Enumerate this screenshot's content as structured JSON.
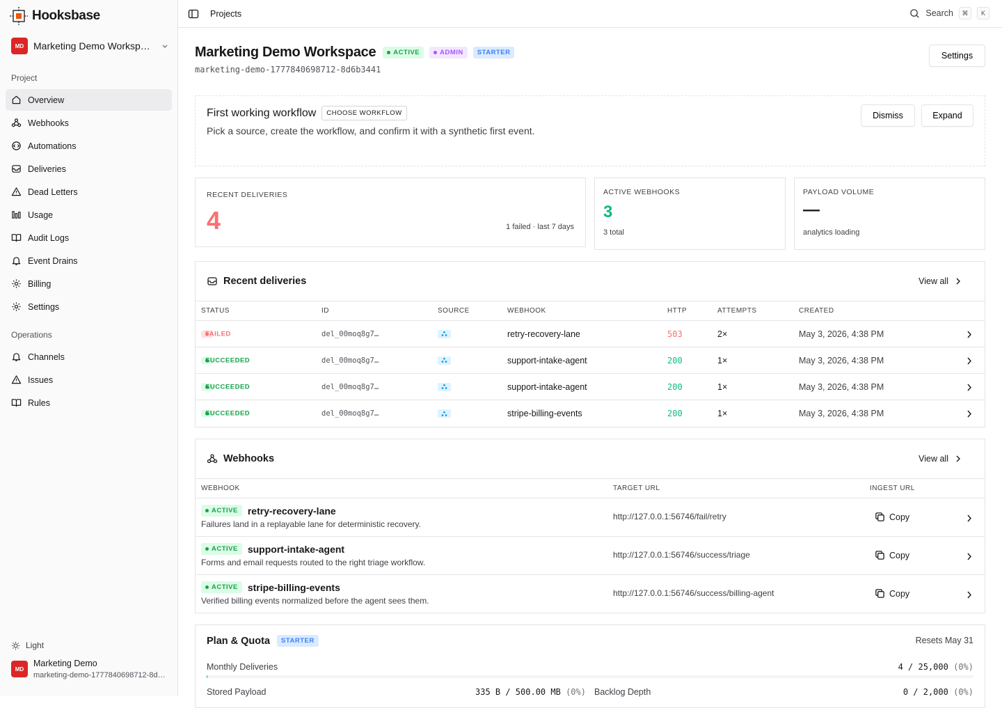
{
  "brand": {
    "name": "Hooksbase"
  },
  "workspace": {
    "initials": "MD",
    "name": "Marketing Demo Workspace",
    "name_short": "Marketing Demo Worksp…"
  },
  "sidebar": {
    "project_label": "Project",
    "project_items": [
      {
        "label": "Overview",
        "icon": "home-icon",
        "active": true
      },
      {
        "label": "Webhooks",
        "icon": "webhook-icon"
      },
      {
        "label": "Automations",
        "icon": "automation-icon"
      },
      {
        "label": "Deliveries",
        "icon": "deliveries-icon"
      },
      {
        "label": "Dead Letters",
        "icon": "warning-icon"
      },
      {
        "label": "Usage",
        "icon": "usage-icon"
      },
      {
        "label": "Audit Logs",
        "icon": "book-icon"
      },
      {
        "label": "Event Drains",
        "icon": "bell-icon"
      },
      {
        "label": "Billing",
        "icon": "gear-icon"
      },
      {
        "label": "Settings",
        "icon": "gear-icon"
      }
    ],
    "operations_label": "Operations",
    "operations_items": [
      {
        "label": "Channels",
        "icon": "bell-icon"
      },
      {
        "label": "Issues",
        "icon": "warning-icon"
      },
      {
        "label": "Rules",
        "icon": "book-icon"
      }
    ],
    "theme_label": "Light",
    "account": {
      "initials": "MD",
      "name": "Marketing Demo",
      "slug": "marketing-demo-1777840698712-8d6…"
    }
  },
  "topbar": {
    "crumb": "Projects",
    "search_label": "Search",
    "kbd1": "⌘",
    "kbd2": "K"
  },
  "header": {
    "title": "Marketing Demo Workspace",
    "badges": {
      "active": "ACTIVE",
      "admin": "ADMIN",
      "starter": "STARTER"
    },
    "slug": "marketing-demo-1777840698712-8d6b3441",
    "settings_label": "Settings"
  },
  "workflow": {
    "title": "First working workflow",
    "tag": "CHOOSE WORKFLOW",
    "description": "Pick a source, create the workflow, and confirm it with a synthetic first event.",
    "dismiss_label": "Dismiss",
    "expand_label": "Expand"
  },
  "stats": {
    "recent": {
      "label": "RECENT DELIVERIES",
      "value": "4",
      "sub": "1 failed · last 7 days"
    },
    "webhooks": {
      "label": "ACTIVE WEBHOOKS",
      "value": "3",
      "sub": "3 total"
    },
    "payload": {
      "label": "PAYLOAD VOLUME",
      "value": "—",
      "sub": "analytics loading"
    }
  },
  "deliveries": {
    "title": "Recent deliveries",
    "view_all": "View all",
    "columns": [
      "STATUS",
      "ID",
      "SOURCE",
      "WEBHOOK",
      "HTTP",
      "ATTEMPTS",
      "CREATED"
    ],
    "rows": [
      {
        "status": "FAILED",
        "id": "del_00moq8g7…",
        "webhook": "retry-recovery-lane",
        "http": "503",
        "attempts": "2×",
        "created": "May 3, 2026, 4:38 PM"
      },
      {
        "status": "SUCCEEDED",
        "id": "del_00moq8g7…",
        "webhook": "support-intake-agent",
        "http": "200",
        "attempts": "1×",
        "created": "May 3, 2026, 4:38 PM"
      },
      {
        "status": "SUCCEEDED",
        "id": "del_00moq8g7…",
        "webhook": "support-intake-agent",
        "http": "200",
        "attempts": "1×",
        "created": "May 3, 2026, 4:38 PM"
      },
      {
        "status": "SUCCEEDED",
        "id": "del_00moq8g7…",
        "webhook": "stripe-billing-events",
        "http": "200",
        "attempts": "1×",
        "created": "May 3, 2026, 4:38 PM"
      }
    ]
  },
  "webhooks": {
    "title": "Webhooks",
    "view_all": "View all",
    "columns": [
      "WEBHOOK",
      "TARGET URL",
      "INGEST URL"
    ],
    "copy_label": "Copy",
    "rows": [
      {
        "status": "ACTIVE",
        "name": "retry-recovery-lane",
        "desc": "Failures land in a replayable lane for deterministic recovery.",
        "url": "http://127.0.0.1:56746/fail/retry"
      },
      {
        "status": "ACTIVE",
        "name": "support-intake-agent",
        "desc": "Forms and email requests routed to the right triage workflow.",
        "url": "http://127.0.0.1:56746/success/triage"
      },
      {
        "status": "ACTIVE",
        "name": "stripe-billing-events",
        "desc": "Verified billing events normalized before the agent sees them.",
        "url": "http://127.0.0.1:56746/success/billing-agent"
      }
    ]
  },
  "plan": {
    "title": "Plan & Quota",
    "badge": "STARTER",
    "resets": "Resets May 31",
    "monthly_label": "Monthly Deliveries",
    "monthly_value": "4 / 25,000",
    "monthly_pct": "(0%)",
    "monthly_fraction": 0.00016,
    "stored_label": "Stored Payload",
    "stored_value": "335 B / 500.00 MB",
    "stored_pct": "(0%)",
    "backlog_label": "Backlog Depth",
    "backlog_value": "0 / 2,000",
    "backlog_pct": "(0%)"
  },
  "colors": {
    "accent_red": "#dc2626",
    "failed": "#f87171",
    "success": "#10b981"
  }
}
